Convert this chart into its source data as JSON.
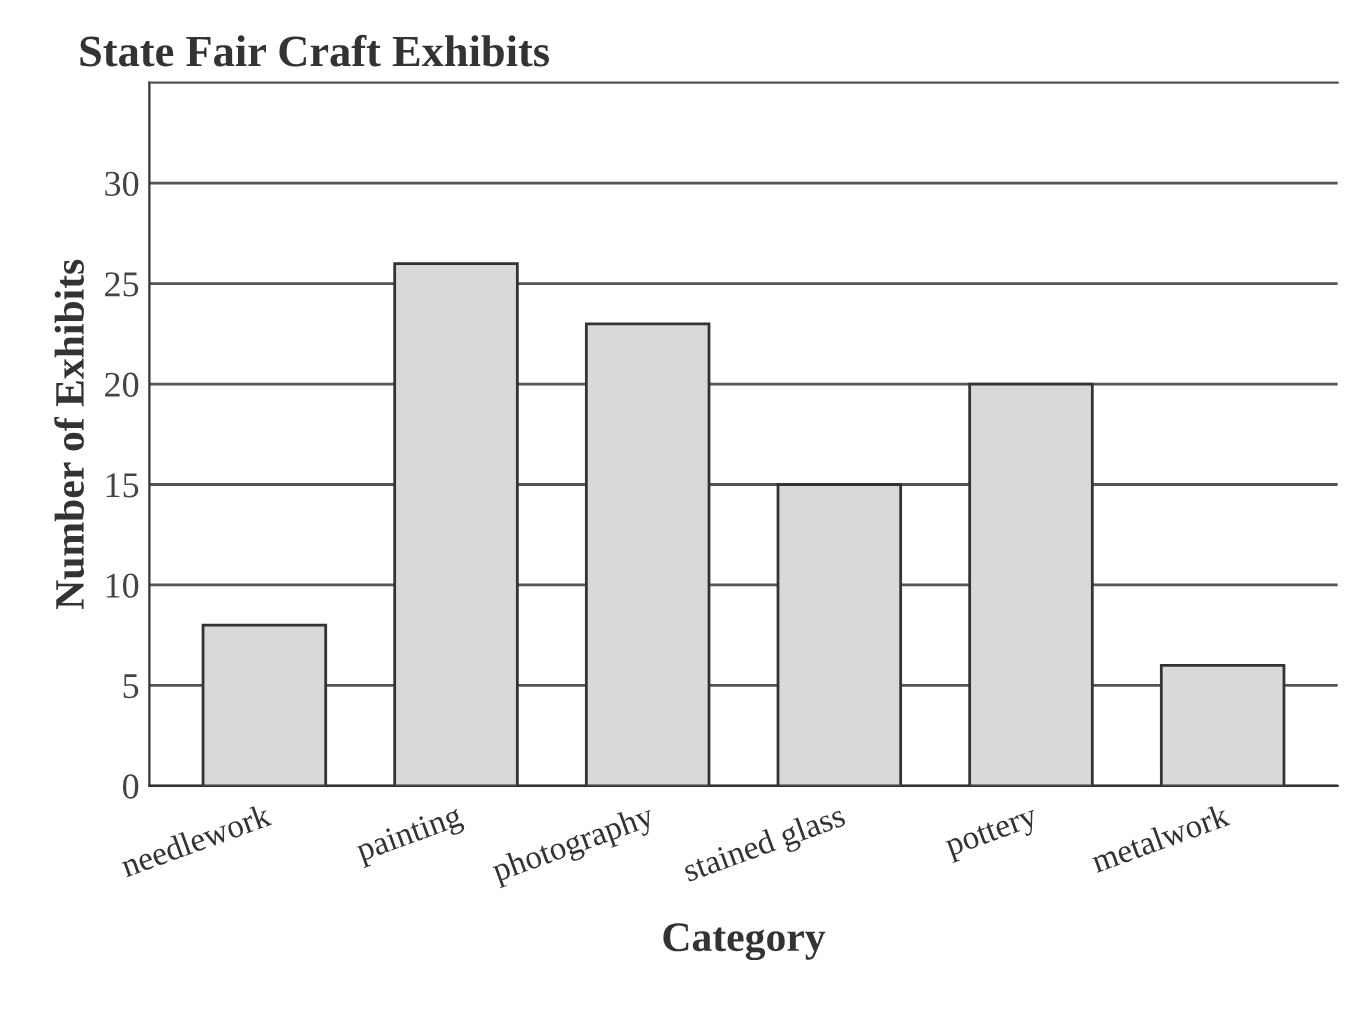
{
  "chart_data": {
    "type": "bar",
    "title": "State Fair Craft Exhibits",
    "xlabel": "Category",
    "ylabel": "Number of Exhibits",
    "categories": [
      "needlework",
      "painting",
      "photography",
      "stained glass",
      "pottery",
      "metalwork"
    ],
    "values": [
      8,
      26,
      23,
      15,
      20,
      6
    ],
    "color": "#d9d9d9",
    "ylim": [
      0,
      35
    ],
    "yticks": [
      0,
      5,
      10,
      15,
      20,
      25,
      30
    ],
    "grid": "y",
    "legend": false
  }
}
